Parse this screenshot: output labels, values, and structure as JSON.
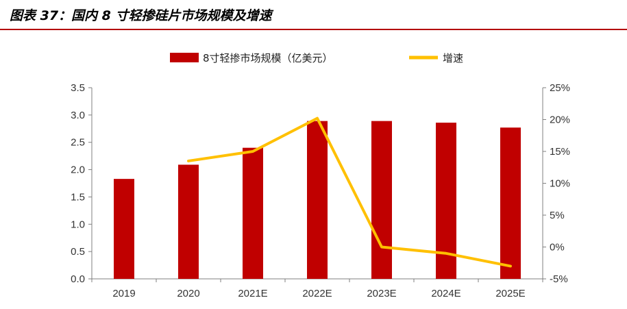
{
  "figure": {
    "title": "图表 37：国内 8 寸轻掺硅片市场规模及增速"
  },
  "colors": {
    "bar": "#c00000",
    "line": "#ffc000",
    "rule": "#b30000",
    "axis": "#7f7f7f"
  },
  "chart_data": {
    "type": "bar",
    "categories": [
      "2019",
      "2020",
      "2021E",
      "2022E",
      "2023E",
      "2024E",
      "2025E"
    ],
    "series": [
      {
        "name": "8寸轻掺市场规模（亿美元）",
        "type": "bar",
        "axis": "left",
        "values": [
          1.83,
          2.09,
          2.4,
          2.89,
          2.89,
          2.86,
          2.77
        ]
      },
      {
        "name": "增速",
        "type": "line",
        "axis": "right",
        "values": [
          null,
          0.135,
          0.15,
          0.202,
          0.0,
          -0.01,
          -0.03
        ]
      }
    ],
    "y_left": {
      "ylim": [
        0,
        3.5
      ],
      "ticks": [
        "0.0",
        "0.5",
        "1.0",
        "1.5",
        "2.0",
        "2.5",
        "3.0",
        "3.5"
      ]
    },
    "y_right": {
      "ylim": [
        -0.05,
        0.25
      ],
      "ticks": [
        "-5%",
        "0%",
        "5%",
        "10%",
        "15%",
        "20%",
        "25%"
      ]
    },
    "grid": false,
    "legend_position": "top-center"
  }
}
